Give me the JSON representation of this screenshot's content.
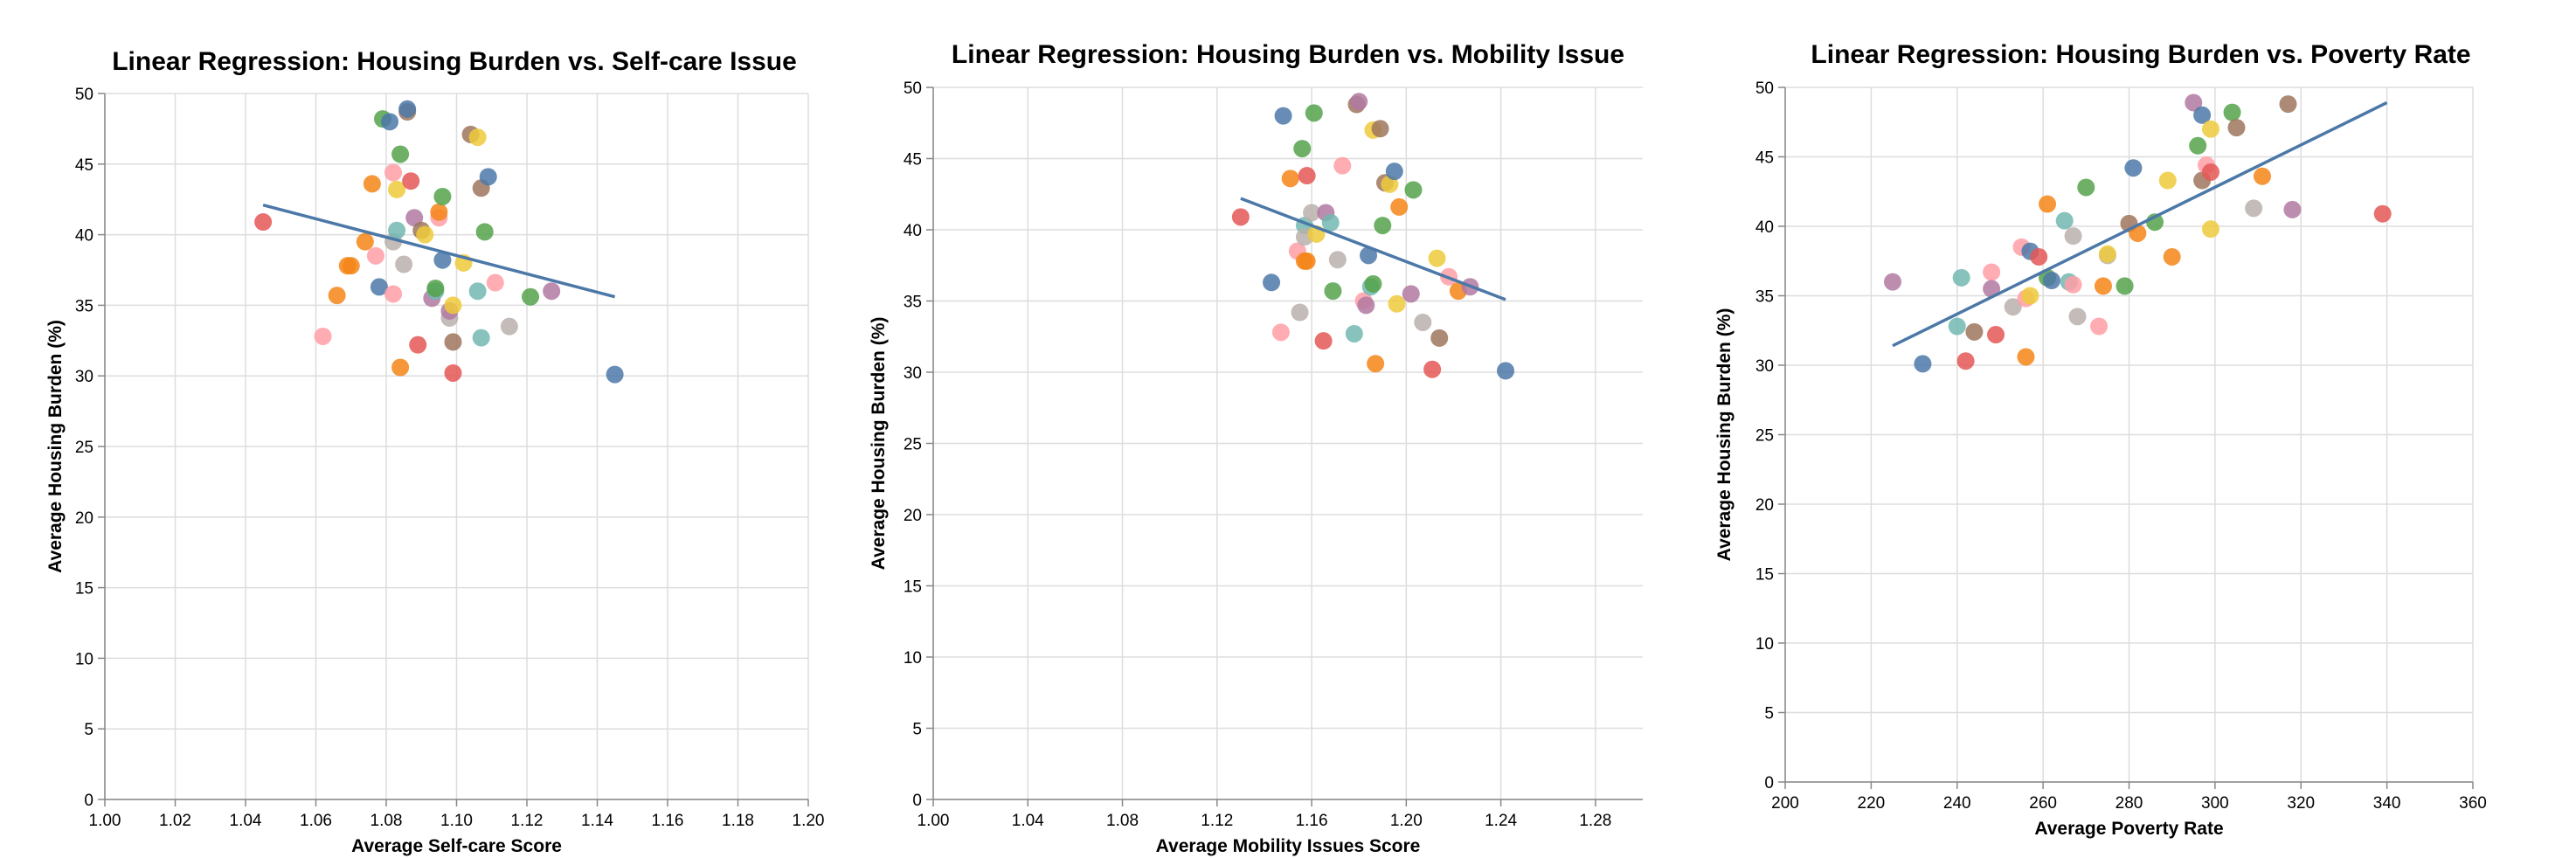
{
  "palette": [
    "#4c78a8",
    "#f58518",
    "#e45756",
    "#72b7b2",
    "#54a24b",
    "#eeca3b",
    "#b279a2",
    "#ff9da6",
    "#9d755d",
    "#bab0ac"
  ],
  "chart_data": [
    {
      "type": "scatter",
      "title": "Linear Regression: Housing Burden vs. Self-care Issue",
      "xlabel": "Average Self-care Score",
      "ylabel": "Average Housing Burden (%)",
      "xlim": [
        1.0,
        1.2
      ],
      "ylim": [
        0,
        50
      ],
      "xticks": [
        "1.00",
        "1.02",
        "1.04",
        "1.06",
        "1.08",
        "1.10",
        "1.12",
        "1.14",
        "1.16",
        "1.18",
        "1.20"
      ],
      "yticks": [
        "0",
        "5",
        "10",
        "15",
        "20",
        "25",
        "30",
        "35",
        "40",
        "45",
        "50"
      ],
      "grid": true,
      "regression": {
        "x": [
          1.045,
          1.145
        ],
        "y": [
          42.1,
          35.6
        ]
      },
      "points": [
        {
          "x": 1.045,
          "y": 40.9,
          "c": 2
        },
        {
          "x": 1.062,
          "y": 32.8,
          "c": 7
        },
        {
          "x": 1.066,
          "y": 35.7,
          "c": 1
        },
        {
          "x": 1.069,
          "y": 37.8,
          "c": 1
        },
        {
          "x": 1.07,
          "y": 37.8,
          "c": 1
        },
        {
          "x": 1.074,
          "y": 39.5,
          "c": 1
        },
        {
          "x": 1.076,
          "y": 43.6,
          "c": 1
        },
        {
          "x": 1.077,
          "y": 38.5,
          "c": 7
        },
        {
          "x": 1.078,
          "y": 36.3,
          "c": 0
        },
        {
          "x": 1.079,
          "y": 48.2,
          "c": 4
        },
        {
          "x": 1.081,
          "y": 48.0,
          "c": 0
        },
        {
          "x": 1.082,
          "y": 35.8,
          "c": 7
        },
        {
          "x": 1.082,
          "y": 39.5,
          "c": 9
        },
        {
          "x": 1.082,
          "y": 44.4,
          "c": 7
        },
        {
          "x": 1.083,
          "y": 43.2,
          "c": 5
        },
        {
          "x": 1.083,
          "y": 40.3,
          "c": 3
        },
        {
          "x": 1.084,
          "y": 45.7,
          "c": 4
        },
        {
          "x": 1.084,
          "y": 30.6,
          "c": 1
        },
        {
          "x": 1.085,
          "y": 37.9,
          "c": 9
        },
        {
          "x": 1.086,
          "y": 48.7,
          "c": 8
        },
        {
          "x": 1.086,
          "y": 48.9,
          "c": 0
        },
        {
          "x": 1.087,
          "y": 43.8,
          "c": 2
        },
        {
          "x": 1.088,
          "y": 41.2,
          "c": 6
        },
        {
          "x": 1.089,
          "y": 32.2,
          "c": 2
        },
        {
          "x": 1.09,
          "y": 40.3,
          "c": 8
        },
        {
          "x": 1.091,
          "y": 40.0,
          "c": 5
        },
        {
          "x": 1.093,
          "y": 35.5,
          "c": 6
        },
        {
          "x": 1.094,
          "y": 36.0,
          "c": 3
        },
        {
          "x": 1.094,
          "y": 36.2,
          "c": 4
        },
        {
          "x": 1.095,
          "y": 41.2,
          "c": 7
        },
        {
          "x": 1.095,
          "y": 41.6,
          "c": 1
        },
        {
          "x": 1.096,
          "y": 42.7,
          "c": 4
        },
        {
          "x": 1.096,
          "y": 38.2,
          "c": 0
        },
        {
          "x": 1.098,
          "y": 34.1,
          "c": 9
        },
        {
          "x": 1.098,
          "y": 34.6,
          "c": 6
        },
        {
          "x": 1.099,
          "y": 35.0,
          "c": 5
        },
        {
          "x": 1.099,
          "y": 32.4,
          "c": 8
        },
        {
          "x": 1.099,
          "y": 30.2,
          "c": 2
        },
        {
          "x": 1.102,
          "y": 38.0,
          "c": 5
        },
        {
          "x": 1.104,
          "y": 47.1,
          "c": 8
        },
        {
          "x": 1.106,
          "y": 46.9,
          "c": 5
        },
        {
          "x": 1.106,
          "y": 36.0,
          "c": 3
        },
        {
          "x": 1.107,
          "y": 43.3,
          "c": 8
        },
        {
          "x": 1.107,
          "y": 32.7,
          "c": 3
        },
        {
          "x": 1.108,
          "y": 40.2,
          "c": 4
        },
        {
          "x": 1.109,
          "y": 44.1,
          "c": 0
        },
        {
          "x": 1.111,
          "y": 36.6,
          "c": 7
        },
        {
          "x": 1.115,
          "y": 33.5,
          "c": 9
        },
        {
          "x": 1.121,
          "y": 35.6,
          "c": 4
        },
        {
          "x": 1.127,
          "y": 36.0,
          "c": 6
        },
        {
          "x": 1.145,
          "y": 30.1,
          "c": 0
        }
      ]
    },
    {
      "type": "scatter",
      "title": "Linear Regression: Housing Burden vs. Mobility Issue",
      "xlabel": "Average Mobility Issues Score",
      "ylabel": "Average Housing Burden (%)",
      "xlim": [
        1.0,
        1.3
      ],
      "ylim": [
        0,
        50
      ],
      "xticks": [
        "1.00",
        "1.04",
        "1.08",
        "1.12",
        "1.16",
        "1.20",
        "1.24",
        "1.28"
      ],
      "yticks": [
        "0",
        "5",
        "10",
        "15",
        "20",
        "25",
        "30",
        "35",
        "40",
        "45",
        "50"
      ],
      "grid": true,
      "regression": {
        "x": [
          1.13,
          1.242
        ],
        "y": [
          42.2,
          35.1
        ]
      },
      "points": [
        {
          "x": 1.13,
          "y": 40.9,
          "c": 2
        },
        {
          "x": 1.143,
          "y": 36.3,
          "c": 0
        },
        {
          "x": 1.147,
          "y": 32.8,
          "c": 7
        },
        {
          "x": 1.148,
          "y": 48.0,
          "c": 0
        },
        {
          "x": 1.151,
          "y": 43.6,
          "c": 1
        },
        {
          "x": 1.154,
          "y": 38.5,
          "c": 7
        },
        {
          "x": 1.155,
          "y": 34.2,
          "c": 9
        },
        {
          "x": 1.156,
          "y": 45.7,
          "c": 4
        },
        {
          "x": 1.157,
          "y": 40.3,
          "c": 3
        },
        {
          "x": 1.157,
          "y": 39.5,
          "c": 9
        },
        {
          "x": 1.157,
          "y": 37.8,
          "c": 1
        },
        {
          "x": 1.158,
          "y": 37.8,
          "c": 1
        },
        {
          "x": 1.158,
          "y": 43.8,
          "c": 2
        },
        {
          "x": 1.16,
          "y": 41.2,
          "c": 9
        },
        {
          "x": 1.161,
          "y": 48.2,
          "c": 4
        },
        {
          "x": 1.162,
          "y": 39.7,
          "c": 5
        },
        {
          "x": 1.165,
          "y": 32.2,
          "c": 2
        },
        {
          "x": 1.166,
          "y": 41.2,
          "c": 6
        },
        {
          "x": 1.168,
          "y": 40.5,
          "c": 3
        },
        {
          "x": 1.169,
          "y": 35.7,
          "c": 4
        },
        {
          "x": 1.171,
          "y": 37.9,
          "c": 9
        },
        {
          "x": 1.173,
          "y": 44.5,
          "c": 7
        },
        {
          "x": 1.178,
          "y": 32.7,
          "c": 3
        },
        {
          "x": 1.179,
          "y": 48.8,
          "c": 8
        },
        {
          "x": 1.18,
          "y": 49.0,
          "c": 6
        },
        {
          "x": 1.182,
          "y": 35.0,
          "c": 7
        },
        {
          "x": 1.183,
          "y": 34.7,
          "c": 6
        },
        {
          "x": 1.184,
          "y": 38.2,
          "c": 0
        },
        {
          "x": 1.185,
          "y": 36.0,
          "c": 3
        },
        {
          "x": 1.186,
          "y": 36.2,
          "c": 4
        },
        {
          "x": 1.186,
          "y": 47.0,
          "c": 5
        },
        {
          "x": 1.187,
          "y": 30.6,
          "c": 1
        },
        {
          "x": 1.189,
          "y": 47.1,
          "c": 8
        },
        {
          "x": 1.19,
          "y": 40.3,
          "c": 4
        },
        {
          "x": 1.191,
          "y": 43.3,
          "c": 8
        },
        {
          "x": 1.193,
          "y": 43.2,
          "c": 5
        },
        {
          "x": 1.195,
          "y": 44.1,
          "c": 0
        },
        {
          "x": 1.196,
          "y": 34.8,
          "c": 5
        },
        {
          "x": 1.197,
          "y": 41.6,
          "c": 1
        },
        {
          "x": 1.202,
          "y": 35.5,
          "c": 6
        },
        {
          "x": 1.203,
          "y": 42.8,
          "c": 4
        },
        {
          "x": 1.207,
          "y": 33.5,
          "c": 9
        },
        {
          "x": 1.211,
          "y": 30.2,
          "c": 2
        },
        {
          "x": 1.213,
          "y": 38.0,
          "c": 5
        },
        {
          "x": 1.214,
          "y": 32.4,
          "c": 8
        },
        {
          "x": 1.218,
          "y": 36.7,
          "c": 7
        },
        {
          "x": 1.222,
          "y": 35.7,
          "c": 1
        },
        {
          "x": 1.227,
          "y": 36.0,
          "c": 6
        },
        {
          "x": 1.242,
          "y": 30.1,
          "c": 0
        }
      ]
    },
    {
      "type": "scatter",
      "title": "Linear Regression: Housing Burden vs. Poverty Rate",
      "xlabel": "Average Poverty Rate",
      "ylabel": "Average Housing Burden (%)",
      "xlim": [
        200,
        360
      ],
      "ylim": [
        0,
        50
      ],
      "xticks": [
        "200",
        "220",
        "240",
        "260",
        "280",
        "300",
        "320",
        "340",
        "360"
      ],
      "yticks": [
        "0",
        "5",
        "10",
        "15",
        "20",
        "25",
        "30",
        "35",
        "40",
        "45",
        "50"
      ],
      "grid": true,
      "regression": {
        "x": [
          225,
          340
        ],
        "y": [
          31.4,
          48.9
        ]
      },
      "points": [
        {
          "x": 225,
          "y": 36.0,
          "c": 6
        },
        {
          "x": 232,
          "y": 30.1,
          "c": 0
        },
        {
          "x": 240,
          "y": 32.8,
          "c": 3
        },
        {
          "x": 241,
          "y": 36.3,
          "c": 3
        },
        {
          "x": 242,
          "y": 30.3,
          "c": 2
        },
        {
          "x": 244,
          "y": 32.4,
          "c": 8
        },
        {
          "x": 248,
          "y": 36.7,
          "c": 7
        },
        {
          "x": 248,
          "y": 35.5,
          "c": 6
        },
        {
          "x": 249,
          "y": 32.2,
          "c": 2
        },
        {
          "x": 253,
          "y": 34.2,
          "c": 9
        },
        {
          "x": 255,
          "y": 38.5,
          "c": 7
        },
        {
          "x": 256,
          "y": 34.8,
          "c": 7
        },
        {
          "x": 256,
          "y": 30.6,
          "c": 1
        },
        {
          "x": 257,
          "y": 35.0,
          "c": 5
        },
        {
          "x": 257,
          "y": 38.2,
          "c": 0
        },
        {
          "x": 259,
          "y": 37.8,
          "c": 2
        },
        {
          "x": 261,
          "y": 36.3,
          "c": 4
        },
        {
          "x": 261,
          "y": 41.6,
          "c": 1
        },
        {
          "x": 262,
          "y": 36.1,
          "c": 0
        },
        {
          "x": 265,
          "y": 40.4,
          "c": 3
        },
        {
          "x": 266,
          "y": 36.0,
          "c": 3
        },
        {
          "x": 267,
          "y": 39.3,
          "c": 9
        },
        {
          "x": 267,
          "y": 35.8,
          "c": 7
        },
        {
          "x": 268,
          "y": 33.5,
          "c": 9
        },
        {
          "x": 270,
          "y": 42.8,
          "c": 4
        },
        {
          "x": 273,
          "y": 32.8,
          "c": 7
        },
        {
          "x": 274,
          "y": 35.7,
          "c": 1
        },
        {
          "x": 275,
          "y": 37.9,
          "c": 9
        },
        {
          "x": 275,
          "y": 38.0,
          "c": 5
        },
        {
          "x": 279,
          "y": 35.7,
          "c": 4
        },
        {
          "x": 280,
          "y": 40.2,
          "c": 8
        },
        {
          "x": 281,
          "y": 44.2,
          "c": 0
        },
        {
          "x": 282,
          "y": 39.5,
          "c": 1
        },
        {
          "x": 286,
          "y": 40.3,
          "c": 4
        },
        {
          "x": 289,
          "y": 43.3,
          "c": 5
        },
        {
          "x": 290,
          "y": 37.8,
          "c": 1
        },
        {
          "x": 295,
          "y": 48.9,
          "c": 6
        },
        {
          "x": 296,
          "y": 45.8,
          "c": 4
        },
        {
          "x": 297,
          "y": 48.0,
          "c": 0
        },
        {
          "x": 297,
          "y": 43.3,
          "c": 8
        },
        {
          "x": 298,
          "y": 44.4,
          "c": 7
        },
        {
          "x": 299,
          "y": 47.0,
          "c": 5
        },
        {
          "x": 299,
          "y": 39.8,
          "c": 5
        },
        {
          "x": 299,
          "y": 43.9,
          "c": 2
        },
        {
          "x": 304,
          "y": 48.2,
          "c": 4
        },
        {
          "x": 305,
          "y": 47.1,
          "c": 8
        },
        {
          "x": 309,
          "y": 41.3,
          "c": 9
        },
        {
          "x": 311,
          "y": 43.6,
          "c": 1
        },
        {
          "x": 317,
          "y": 48.8,
          "c": 8
        },
        {
          "x": 318,
          "y": 41.2,
          "c": 6
        },
        {
          "x": 339,
          "y": 40.9,
          "c": 2
        }
      ]
    }
  ]
}
